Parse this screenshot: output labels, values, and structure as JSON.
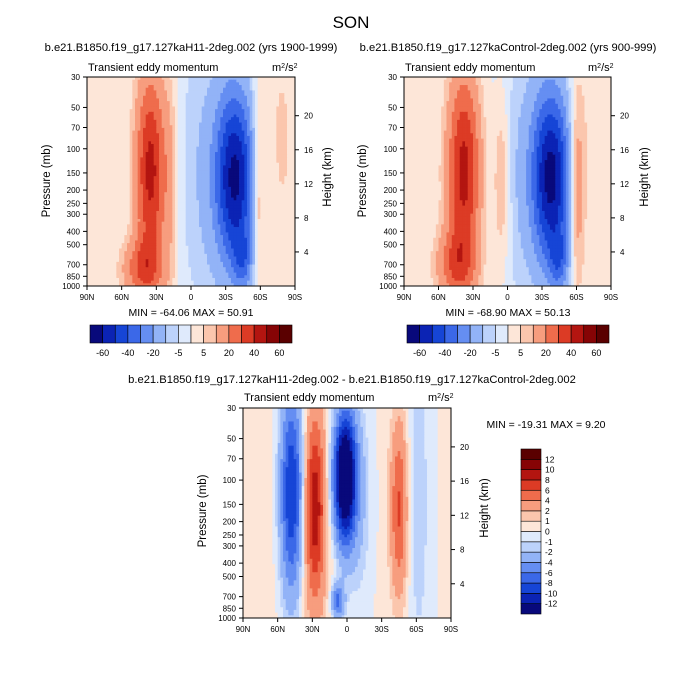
{
  "chart_data": {
    "type": "heatmap",
    "title": "SON",
    "panels": [
      {
        "id": "top-left",
        "case": "b.e21.B1850.f19_g17.127kaH11-2deg.002 (yrs 1900-1999)",
        "variable": "Transient eddy momentum",
        "units_base": "m",
        "units_sup1": "2",
        "units_mid": "/s",
        "units_sup2": "2",
        "min_max": "MIN = -64.06  MAX =  50.91",
        "min": -64.06,
        "max": 50.91,
        "blobs": [
          {
            "lat": 42,
            "lev": 0.92,
            "slat": 12,
            "slev": 0.1,
            "amp": 26
          },
          {
            "lat": 35,
            "lev": 0.45,
            "slat": 9,
            "slev": 0.33,
            "amp": 44
          },
          {
            "lat": 18,
            "lev": 0.5,
            "slat": 5,
            "slev": 0.38,
            "amp": 9
          },
          {
            "lat": -10,
            "lev": 0.45,
            "slat": 16,
            "slev": 0.55,
            "amp": -9
          },
          {
            "lat": -38,
            "lev": 0.48,
            "slat": 12,
            "slev": 0.3,
            "amp": -62
          },
          {
            "lat": -45,
            "lev": 0.88,
            "slat": 6,
            "slev": 0.1,
            "amp": -22
          },
          {
            "lat": -58,
            "lev": 0.52,
            "slat": 4,
            "slev": 0.33,
            "amp": 18
          },
          {
            "lat": -78,
            "lev": 0.3,
            "slat": 10,
            "slev": 0.4,
            "amp": 6
          }
        ]
      },
      {
        "id": "top-right",
        "case": "b.e21.B1850.f19_g17.127kaControl-2deg.002 (yrs 900-999)",
        "variable": "Transient eddy momentum",
        "units_base": "m",
        "units_sup1": "2",
        "units_mid": "/s",
        "units_sup2": "2",
        "min_max": "MIN = -68.90  MAX =  50.13",
        "min": -68.9,
        "max": 50.13,
        "blobs": [
          {
            "lat": 45,
            "lev": 0.9,
            "slat": 12,
            "slev": 0.12,
            "amp": 24
          },
          {
            "lat": 38,
            "lev": 0.45,
            "slat": 10,
            "slev": 0.33,
            "amp": 44
          },
          {
            "lat": 5,
            "lev": 0.5,
            "slat": 5,
            "slev": 0.3,
            "amp": 13
          },
          {
            "lat": -10,
            "lev": 0.45,
            "slat": 15,
            "slev": 0.55,
            "amp": -8
          },
          {
            "lat": -38,
            "lev": 0.48,
            "slat": 12,
            "slev": 0.3,
            "amp": -64
          },
          {
            "lat": -45,
            "lev": 0.88,
            "slat": 6,
            "slev": 0.1,
            "amp": -22
          },
          {
            "lat": -60,
            "lev": 0.52,
            "slat": 5,
            "slev": 0.33,
            "amp": 22
          },
          {
            "lat": -78,
            "lev": 0.3,
            "slat": 10,
            "slev": 0.4,
            "amp": 5
          }
        ]
      },
      {
        "id": "bottom-diff",
        "case": "b.e21.B1850.f19_g17.127kaH11-2deg.002 - b.e21.B1850.f19_g17.127kaControl-2deg.002",
        "variable": "Transient eddy momentum",
        "units_base": "m",
        "units_sup1": "2",
        "units_mid": "/s",
        "units_sup2": "2",
        "min_max": "MIN = -19.31  MAX =  9.20",
        "min": -19.31,
        "max": 9.2,
        "blobs": [
          {
            "lat": 20,
            "lev": 0.45,
            "slat": 40,
            "slev": 0.6,
            "amp": 1.2
          },
          {
            "lat": 48,
            "lev": 0.4,
            "slat": 7,
            "slev": 0.35,
            "amp": -11
          },
          {
            "lat": 28,
            "lev": 0.48,
            "slat": 6,
            "slev": 0.3,
            "amp": 8.5
          },
          {
            "lat": 2,
            "lev": 0.33,
            "slat": 7,
            "slev": 0.22,
            "amp": -18
          },
          {
            "lat": -10,
            "lev": 0.45,
            "slat": 10,
            "slev": 0.4,
            "amp": -2.5
          },
          {
            "lat": -45,
            "lev": 0.48,
            "slat": 5,
            "slev": 0.28,
            "amp": 6
          },
          {
            "lat": -62,
            "lev": 0.45,
            "slat": 6,
            "slev": 0.5,
            "amp": -2
          },
          {
            "lat": 8,
            "lev": 0.92,
            "slat": 4,
            "slev": 0.06,
            "amp": -7
          }
        ]
      }
    ],
    "xaxis_labels": [
      "90N",
      "60N",
      "30N",
      "0",
      "30S",
      "60S",
      "90S"
    ],
    "xaxis_values": [
      90,
      60,
      30,
      0,
      -30,
      -60,
      -90
    ],
    "pressure_label": "Pressure (mb)",
    "pressure_ticks": [
      "30",
      "50",
      "70",
      "100",
      "150",
      "200",
      "250",
      "300",
      "400",
      "500",
      "700",
      "850",
      "1000"
    ],
    "pressure_values": [
      30,
      50,
      70,
      100,
      150,
      200,
      250,
      300,
      400,
      500,
      700,
      850,
      1000
    ],
    "height_label": "Height (km)",
    "height_ticks_top": [
      "20",
      "16",
      "12",
      "8",
      "4"
    ],
    "height_values_top": [
      20,
      16,
      12,
      8,
      4
    ],
    "height_ticks_diff": [
      "20",
      "16",
      "12",
      "8",
      "4"
    ],
    "height_values_diff": [
      20,
      16,
      12,
      8,
      4
    ],
    "colorbar_top": {
      "labels": [
        "-60",
        "-40",
        "-20",
        "-5",
        "5",
        "20",
        "40",
        "60"
      ],
      "levels": [
        -60,
        -50,
        -40,
        -30,
        -20,
        -10,
        -5,
        0,
        5,
        10,
        20,
        30,
        40,
        50,
        60
      ],
      "colors": [
        "#08097b",
        "#0b23b4",
        "#1645d6",
        "#3b68e8",
        "#658ef2",
        "#92b3f7",
        "#bcd2fb",
        "#dfeafc",
        "#fde6d8",
        "#fbc6ad",
        "#f79d7e",
        "#ef6c4c",
        "#dc3b25",
        "#b31510",
        "#860405",
        "#5a0000"
      ]
    },
    "colorbar_diff": {
      "labels": [
        "12",
        "10",
        "8",
        "6",
        "4",
        "2",
        "1",
        "0",
        "-1",
        "-2",
        "-4",
        "-6",
        "-8",
        "-10",
        "-12"
      ],
      "levels": [
        -12,
        -10,
        -8,
        -6,
        -4,
        -2,
        -1,
        0,
        1,
        2,
        4,
        6,
        8,
        10,
        12
      ],
      "colors": [
        "#08097b",
        "#0b23b4",
        "#1645d6",
        "#3b68e8",
        "#658ef2",
        "#92b3f7",
        "#bcd2fb",
        "#dfeafc",
        "#fde6d8",
        "#fbc6ad",
        "#f79d7e",
        "#ef6c4c",
        "#dc3b25",
        "#b31510",
        "#860405",
        "#5a0000"
      ]
    }
  }
}
